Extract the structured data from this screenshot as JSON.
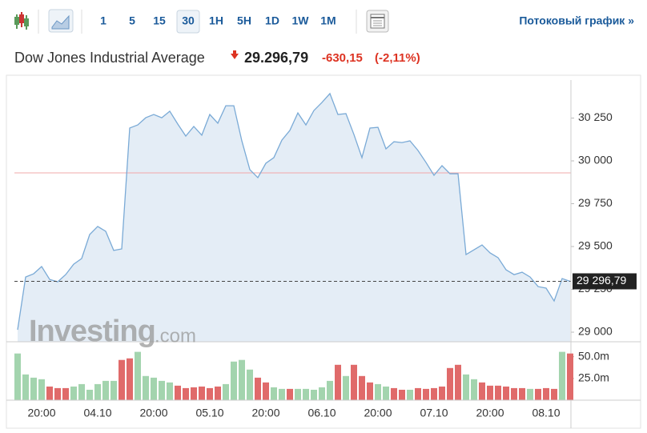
{
  "toolbar": {
    "intervals": [
      "1",
      "5",
      "15",
      "30",
      "1H",
      "5H",
      "1D",
      "1W",
      "1M"
    ],
    "active_interval": 3,
    "stream_link": "Потоковый график »"
  },
  "header": {
    "name": "Dow Jones Industrial Average",
    "price": "29.296,79",
    "change": "-630,15",
    "change_percent": "(-2,11%)"
  },
  "watermark": {
    "brand": "Investing",
    "suffix": ".com"
  },
  "chart_data": [
    {
      "type": "line",
      "categories": [
        null,
        null,
        null,
        null,
        null,
        null,
        null,
        null,
        null,
        null,
        null,
        null,
        null,
        null,
        null,
        null,
        null,
        null,
        null,
        null,
        null,
        null,
        null,
        null,
        null,
        null,
        null,
        null,
        null,
        null,
        null,
        null,
        null,
        null,
        null,
        null,
        null,
        null,
        null,
        null,
        null,
        null,
        null,
        null,
        null,
        null,
        null,
        null,
        null,
        null,
        null,
        null,
        null,
        null,
        null,
        null,
        null,
        null,
        null,
        null,
        null,
        null,
        null,
        null,
        null,
        null,
        null,
        null,
        null,
        null
      ],
      "values": [
        29014,
        29322,
        29341,
        29383,
        29308,
        29294,
        29336,
        29397,
        29430,
        29570,
        29617,
        29589,
        29477,
        29486,
        30192,
        30210,
        30252,
        30271,
        30252,
        30290,
        30215,
        30145,
        30201,
        30150,
        30271,
        30220,
        30322,
        30322,
        30117,
        29949,
        29902,
        29986,
        30019,
        30121,
        30178,
        30280,
        30210,
        30294,
        30341,
        30393,
        30271,
        30276,
        30154,
        30019,
        30192,
        30196,
        30070,
        30112,
        30107,
        30117,
        30061,
        29991,
        29916,
        29972,
        29925,
        29925,
        29453,
        29481,
        29509,
        29463,
        29435,
        29364,
        29336,
        29350,
        29322,
        29266,
        29257,
        29182,
        29313,
        29297
      ],
      "color": "#7aaad6",
      "fill": "#e4edf6",
      "ylim": [
        28944,
        30472
      ],
      "yticks": [
        {
          "value": 29000,
          "label": "29 000"
        },
        {
          "value": 29250,
          "label": "29 250"
        },
        {
          "value": 29500,
          "label": "29 500"
        },
        {
          "value": 29750,
          "label": "29 750"
        },
        {
          "value": 30000,
          "label": "30 000"
        },
        {
          "value": 30250,
          "label": "30 250"
        }
      ],
      "reference_line": 29930,
      "reference_color": "#f2a8a8",
      "last_value": 29296.79,
      "last_label": "29 296,79"
    },
    {
      "type": "bar",
      "categories": [
        null,
        null,
        null,
        "20:00",
        null,
        null,
        null,
        null,
        null,
        null,
        "04.10",
        null,
        null,
        null,
        null,
        null,
        null,
        "20:00",
        null,
        null,
        null,
        null,
        null,
        null,
        "05.10",
        null,
        null,
        null,
        null,
        null,
        null,
        "20:00",
        null,
        null,
        null,
        null,
        null,
        null,
        "06.10",
        null,
        null,
        null,
        null,
        null,
        null,
        "20:00",
        null,
        null,
        null,
        null,
        null,
        null,
        "07.10",
        null,
        null,
        null,
        null,
        null,
        null,
        "20:00",
        null,
        null,
        null,
        null,
        null,
        null,
        "08.10",
        null,
        null,
        null
      ],
      "values": [
        53.7,
        29.6,
        25.9,
        24.1,
        15.7,
        13.9,
        13.9,
        15.7,
        18.5,
        12.0,
        18.5,
        22.2,
        22.2,
        46.3,
        48.1,
        55.6,
        27.8,
        25.9,
        22.2,
        20.4,
        16.7,
        13.9,
        14.8,
        15.7,
        13.9,
        15.7,
        18.5,
        44.4,
        46.3,
        35.2,
        25.9,
        20.4,
        14.8,
        13.0,
        13.0,
        13.0,
        13.0,
        12.0,
        14.8,
        22.2,
        40.7,
        27.8,
        40.7,
        27.8,
        20.4,
        18.5,
        15.7,
        13.9,
        12.0,
        12.0,
        13.9,
        13.0,
        13.9,
        15.7,
        37.0,
        40.7,
        29.6,
        24.1,
        20.4,
        16.7,
        16.7,
        15.7,
        13.9,
        13.9,
        13.0,
        13.0,
        13.9,
        13.0,
        55.6,
        53.7
      ],
      "colors": [
        "#a3d4ae",
        "#a3d4ae",
        "#a3d4ae",
        "#a3d4ae",
        "#e06a6a",
        "#e06a6a",
        "#e06a6a",
        "#a3d4ae",
        "#a3d4ae",
        "#a3d4ae",
        "#a3d4ae",
        "#a3d4ae",
        "#a3d4ae",
        "#e06a6a",
        "#e06a6a",
        "#a3d4ae",
        "#a3d4ae",
        "#a3d4ae",
        "#a3d4ae",
        "#a3d4ae",
        "#e06a6a",
        "#e06a6a",
        "#e06a6a",
        "#e06a6a",
        "#e06a6a",
        "#e06a6a",
        "#a3d4ae",
        "#a3d4ae",
        "#a3d4ae",
        "#a3d4ae",
        "#e06a6a",
        "#e06a6a",
        "#a3d4ae",
        "#a3d4ae",
        "#e06a6a",
        "#a3d4ae",
        "#a3d4ae",
        "#a3d4ae",
        "#a3d4ae",
        "#a3d4ae",
        "#e06a6a",
        "#a3d4ae",
        "#e06a6a",
        "#e06a6a",
        "#e06a6a",
        "#a3d4ae",
        "#a3d4ae",
        "#e06a6a",
        "#e06a6a",
        "#a3d4ae",
        "#e06a6a",
        "#e06a6a",
        "#e06a6a",
        "#e06a6a",
        "#e06a6a",
        "#e06a6a",
        "#a3d4ae",
        "#a3d4ae",
        "#e06a6a",
        "#e06a6a",
        "#e06a6a",
        "#e06a6a",
        "#e06a6a",
        "#e06a6a",
        "#a3d4ae",
        "#e06a6a",
        "#e06a6a",
        "#e06a6a",
        "#a3d4ae",
        "#e06a6a"
      ],
      "ylim": [
        0,
        58
      ],
      "yticks": [
        {
          "value": 25,
          "label": "25.0m"
        },
        {
          "value": 50,
          "label": "50.0m"
        }
      ]
    }
  ]
}
